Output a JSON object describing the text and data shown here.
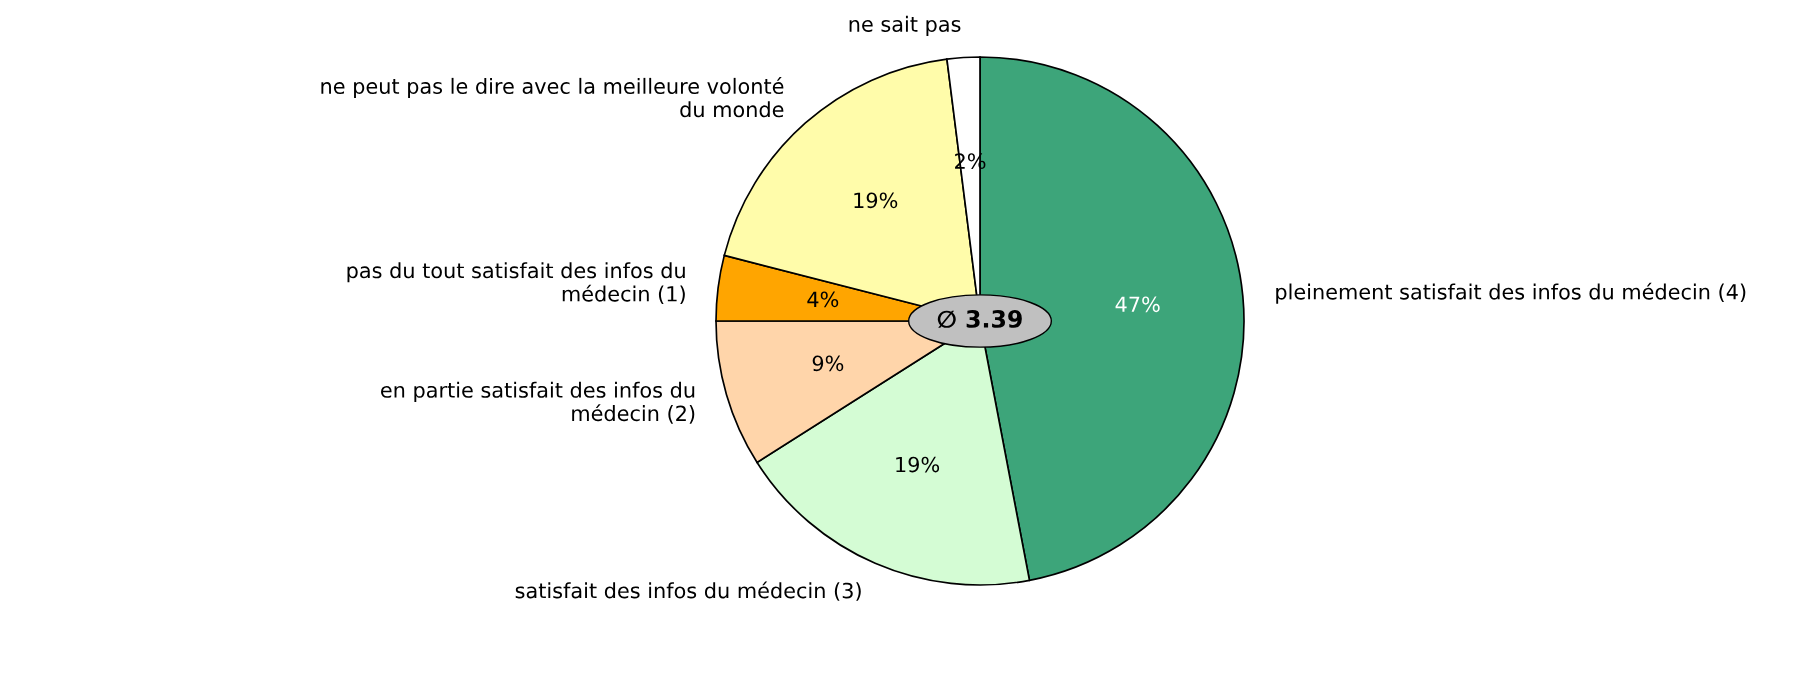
{
  "chart_data": {
    "type": "pie",
    "categories": [
      "pleinement satisfait des infos du médecin (4)",
      "satisfait des infos du médecin (3)",
      "en partie satisfait des infos du\nmédecin (2)",
      "pas du tout satisfait des infos du\nmédecin (1)",
      "ne peut pas le dire avec la meilleure volonté\ndu monde",
      "ne sait pas"
    ],
    "values": [
      47,
      19,
      9,
      4,
      19,
      2
    ],
    "value_labels": [
      "47%",
      "19%",
      "9%",
      "4%",
      "19%",
      "2%"
    ],
    "colors": [
      "#3da57a",
      "#d4fcd4",
      "#ffd5aa",
      "#ffa500",
      "#fffcaa",
      "#ffffff"
    ],
    "annotations": [
      "∅ 3.39"
    ]
  }
}
